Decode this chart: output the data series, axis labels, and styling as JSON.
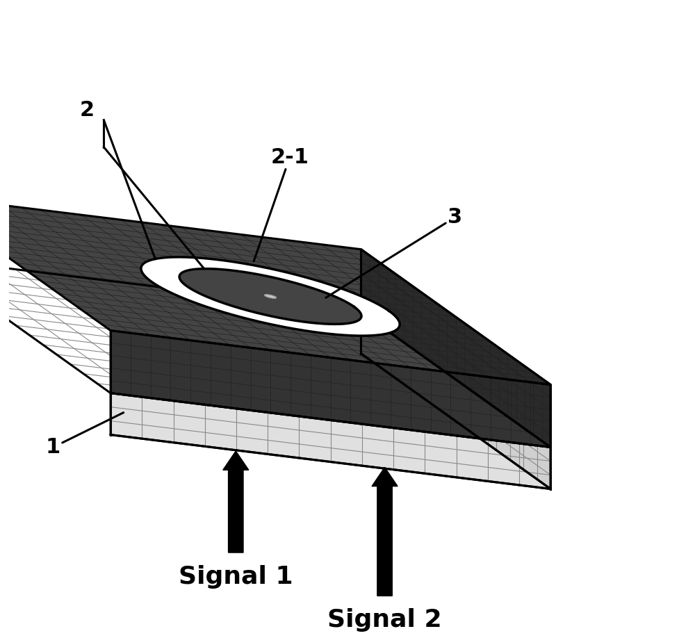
{
  "bg_color": "#ffffff",
  "top_layer_fill": "#444444",
  "top_layer_side_fill": "#333333",
  "bottom_layer_fill": "#ffffff",
  "bottom_layer_side_fill": "#dddddd",
  "grid_top_color": "#222222",
  "grid_bottom_color": "#888888",
  "outline_color": "#000000",
  "ring_white": "#ffffff",
  "ring_dark": "#444444",
  "dot_color": "#aaaaaa",
  "arrow_color": "#000000",
  "label_color": "#000000",
  "label_fontsize": 22,
  "signal_fontsize": 26,
  "label_1": "1",
  "label_2": "2",
  "label_21": "2-1",
  "label_3": "3",
  "signal1_text": "Signal 1",
  "signal2_text": "Signal 2",
  "cx3d": 0.57,
  "cy3d": 0.48,
  "outer_r": 0.27,
  "inner_r": 0.19,
  "disk_r": 0.135,
  "dot_r": 0.012
}
